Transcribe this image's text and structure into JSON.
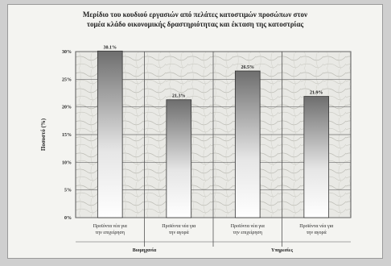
{
  "chart_data": {
    "type": "bar",
    "title_line1": "Μερίδιο του κουδιού εργασιών από πελάτες κατοστιμών προσώπων στον",
    "title_line2": "τομέα κλάδο οικονομικής δραστηριότητας και έκταση της κατοστρίας",
    "ylabel": "Ποσοστό (%)",
    "ylim": [
      0,
      30
    ],
    "yticks": [
      "0%",
      "5%",
      "10%",
      "15%",
      "20%",
      "25%",
      "30%"
    ],
    "categories": [
      [
        "Προϊόντα νέα για",
        "την επιχείρηση"
      ],
      [
        "Προϊόντα νέα για",
        "την αγορά"
      ],
      [
        "Προϊόντα νέα για",
        "την επιχείρηση"
      ],
      [
        "Προϊόντα νέα για",
        "την αγορά"
      ]
    ],
    "values": [
      30.1,
      21.3,
      26.5,
      21.9
    ],
    "value_labels": [
      "30.1%",
      "21.3%",
      "26.5%",
      "21.9%"
    ],
    "groups": [
      "Βιομηχανία",
      "Υπηρεσίες"
    ],
    "grid": true
  }
}
